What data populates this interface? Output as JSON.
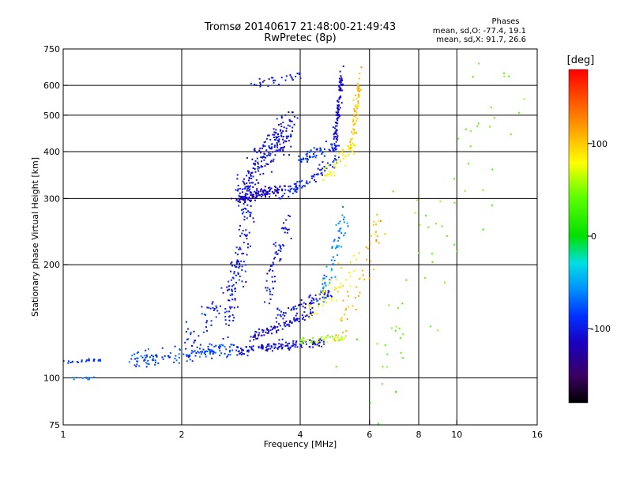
{
  "chart_data": {
    "type": "scatter",
    "title": "Tromsø 20140617 21:48:00-21:49:43",
    "subtitle": "RwPretec (8p)",
    "stats": {
      "heading": "Phases",
      "line_o": "mean, sd,O: -77.4, 19.1",
      "line_x": "mean, sd,X:  91.7, 26.6"
    },
    "xlabel": "Frequency [MHz]",
    "ylabel": "Stationary phase Virtual Height [km]",
    "x_scale": "log",
    "y_scale": "log",
    "xlim": [
      1,
      16
    ],
    "ylim": [
      75,
      750
    ],
    "grid": true,
    "x_ticks": [
      1,
      2,
      4,
      6,
      8,
      10,
      16
    ],
    "x_tick_labels": [
      "1",
      "2",
      "4",
      "6",
      "8",
      "10",
      "16"
    ],
    "y_ticks": [
      75,
      100,
      200,
      300,
      400,
      500,
      600,
      750
    ],
    "y_tick_labels": [
      "75",
      "100",
      "200",
      "300",
      "400",
      "500",
      "600",
      "750"
    ],
    "x_grid": [
      2,
      4,
      6,
      8,
      10
    ],
    "y_grid": [
      100,
      200,
      300,
      400,
      500,
      600
    ],
    "colorbar": {
      "label": "[deg]",
      "range": [
        -180,
        180
      ],
      "ticks": [
        100,
        0,
        -100
      ],
      "tick_labels": [
        "100",
        "0",
        "-100"
      ]
    },
    "traces": [
      {
        "f0": 1.0,
        "f1": 1.25,
        "h0": 110,
        "h1": 112,
        "phase": -85,
        "n": 25,
        "sf": 0.01,
        "sh": 0.01
      },
      {
        "f0": 1.05,
        "f1": 1.2,
        "h0": 100,
        "h1": 100,
        "phase": -70,
        "n": 10,
        "sf": 0.01,
        "sh": 0.01
      },
      {
        "f0": 1.5,
        "f1": 2.8,
        "h0": 112,
        "h1": 120,
        "phase": -80,
        "n": 140,
        "sf": 0.03,
        "sh": 0.05
      },
      {
        "f0": 2.0,
        "f1": 2.85,
        "h0": 115,
        "h1": 200,
        "phase": -95,
        "n": 70,
        "sf": 0.03,
        "sh": 0.12
      },
      {
        "f0": 2.6,
        "f1": 3.0,
        "h0": 140,
        "h1": 300,
        "phase": -100,
        "n": 110,
        "sf": 0.04,
        "sh": 0.15
      },
      {
        "f0": 2.8,
        "f1": 4.6,
        "h0": 118,
        "h1": 125,
        "phase": -105,
        "n": 130,
        "sf": 0.03,
        "sh": 0.03
      },
      {
        "f0": 3.0,
        "f1": 4.4,
        "h0": 128,
        "h1": 150,
        "phase": -110,
        "n": 90,
        "sf": 0.02,
        "sh": 0.03
      },
      {
        "f0": 3.5,
        "f1": 4.8,
        "h0": 145,
        "h1": 170,
        "phase": -105,
        "n": 70,
        "sf": 0.03,
        "sh": 0.04
      },
      {
        "f0": 4.0,
        "f1": 5.2,
        "h0": 125,
        "h1": 128,
        "phase": 60,
        "n": 45,
        "sf": 0.02,
        "sh": 0.02
      },
      {
        "f0": 4.2,
        "f1": 5.6,
        "h0": 150,
        "h1": 200,
        "phase": 80,
        "n": 50,
        "sf": 0.03,
        "sh": 0.08
      },
      {
        "f0": 4.5,
        "f1": 5.2,
        "h0": 160,
        "h1": 270,
        "phase": -60,
        "n": 60,
        "sf": 0.03,
        "sh": 0.12
      },
      {
        "f0": 3.3,
        "f1": 3.8,
        "h0": 170,
        "h1": 280,
        "phase": -100,
        "n": 60,
        "sf": 0.03,
        "sh": 0.1
      },
      {
        "f0": 2.8,
        "f1": 3.6,
        "h0": 300,
        "h1": 320,
        "phase": -115,
        "n": 120,
        "sf": 0.04,
        "sh": 0.03
      },
      {
        "f0": 2.8,
        "f1": 3.8,
        "h0": 310,
        "h1": 480,
        "phase": -105,
        "n": 220,
        "sf": 0.05,
        "sh": 0.1
      },
      {
        "f0": 3.6,
        "f1": 4.9,
        "h0": 300,
        "h1": 380,
        "phase": -95,
        "n": 80,
        "sf": 0.03,
        "sh": 0.04
      },
      {
        "f0": 4.0,
        "f1": 5.0,
        "h0": 380,
        "h1": 420,
        "phase": -90,
        "n": 60,
        "sf": 0.03,
        "sh": 0.04
      },
      {
        "f0": 4.9,
        "f1": 5.1,
        "h0": 420,
        "h1": 640,
        "phase": -110,
        "n": 110,
        "sf": 0.01,
        "sh": 0.08
      },
      {
        "f0": 4.6,
        "f1": 5.5,
        "h0": 340,
        "h1": 420,
        "phase": 80,
        "n": 50,
        "sf": 0.02,
        "sh": 0.05
      },
      {
        "f0": 5.4,
        "f1": 5.7,
        "h0": 420,
        "h1": 640,
        "phase": 100,
        "n": 70,
        "sf": 0.01,
        "sh": 0.08
      },
      {
        "f0": 3.0,
        "f1": 4.0,
        "h0": 600,
        "h1": 640,
        "phase": -100,
        "n": 30,
        "sf": 0.03,
        "sh": 0.03
      },
      {
        "f0": 5.5,
        "f1": 14.5,
        "h0": 80,
        "h1": 640,
        "phase": 40,
        "n": 70,
        "sf": 0.15,
        "sh": 0.5
      },
      {
        "f0": 5.0,
        "f1": 6.5,
        "h0": 130,
        "h1": 260,
        "phase": 110,
        "n": 50,
        "sf": 0.04,
        "sh": 0.1
      }
    ]
  }
}
